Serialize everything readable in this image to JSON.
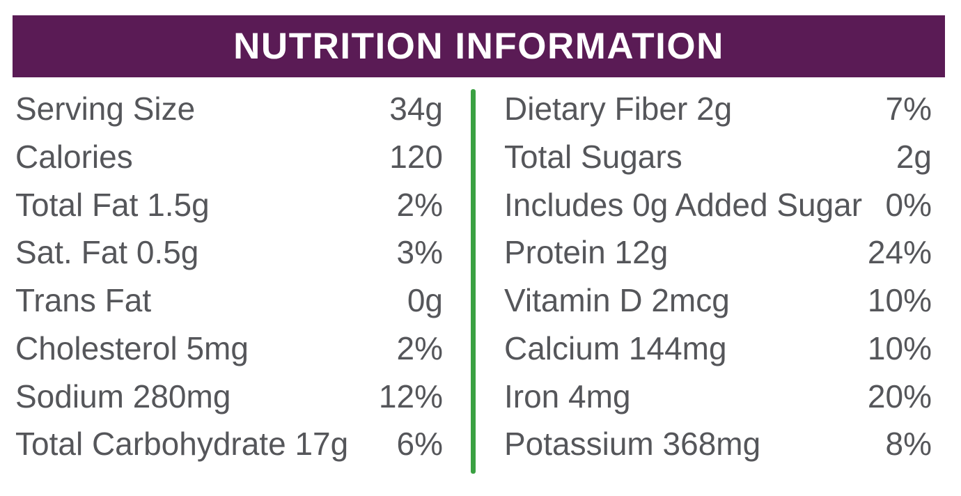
{
  "header": {
    "title": "NUTRITION INFORMATION"
  },
  "colors": {
    "header_bg": "#5a1b55",
    "header_text": "#ffffff",
    "divider_green": "#3aa142",
    "body_text": "#55565a"
  },
  "table": {
    "left_column": [
      {
        "label": "Serving Size",
        "value": "34g"
      },
      {
        "label": "Calories",
        "value": "120"
      },
      {
        "label": "Total Fat 1.5g",
        "value": "2%"
      },
      {
        "label": "Sat. Fat 0.5g",
        "value": "3%"
      },
      {
        "label": "Trans Fat",
        "value": "0g"
      },
      {
        "label": "Cholesterol 5mg",
        "value": "2%"
      },
      {
        "label": "Sodium 280mg",
        "value": "12%"
      },
      {
        "label": "Total Carbohydrate 17g",
        "value": "6%"
      }
    ],
    "right_column": [
      {
        "label": "Dietary Fiber 2g",
        "value": "7%"
      },
      {
        "label": "Total Sugars",
        "value": "2g"
      },
      {
        "label": "Includes 0g Added Sugar",
        "value": "0%"
      },
      {
        "label": "Protein 12g",
        "value": "24%"
      },
      {
        "label": "Vitamin D 2mcg",
        "value": "10%"
      },
      {
        "label": "Calcium 144mg",
        "value": "10%"
      },
      {
        "label": "Iron 4mg",
        "value": "20%"
      },
      {
        "label": "Potassium 368mg",
        "value": "8%"
      }
    ]
  }
}
